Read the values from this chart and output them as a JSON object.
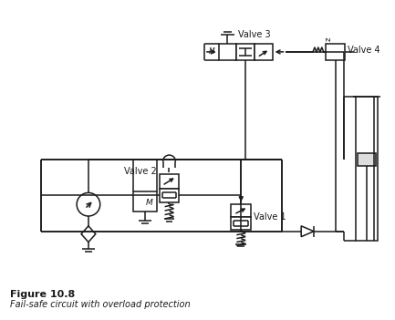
{
  "title": "Figure 10.8",
  "subtitle": "Fail-safe circuit with overload protection",
  "bg_color": "#ffffff",
  "line_color": "#1a1a1a",
  "lw": 1.1,
  "valve1_label": "Valve 1",
  "valve2_label": "Valve 2",
  "valve3_label": "Valve 3",
  "valve4_label": "Valve 4",
  "figsize": [
    4.33,
    3.51
  ],
  "dpi": 100
}
